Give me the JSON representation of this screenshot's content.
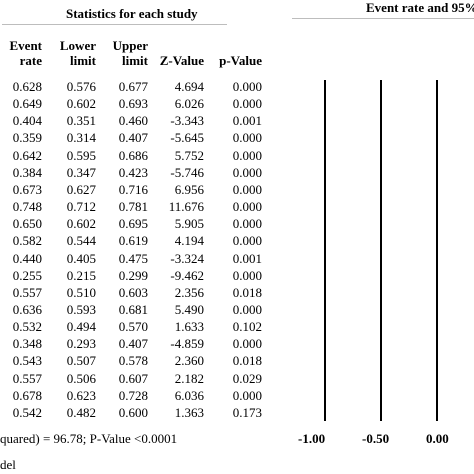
{
  "header": {
    "stats_title": "Statistics for each study",
    "ci_title": "Event rate and 95%"
  },
  "columns": {
    "event_rate": [
      "Event",
      "rate"
    ],
    "lower_limit": [
      "Lower",
      "limit"
    ],
    "upper_limit": [
      "Upper",
      "limit"
    ],
    "z_value": "Z-Value",
    "p_value": "p-Value"
  },
  "rows": [
    [
      "0.628",
      "0.576",
      "0.677",
      "4.694",
      "0.000"
    ],
    [
      "0.649",
      "0.602",
      "0.693",
      "6.026",
      "0.000"
    ],
    [
      "0.404",
      "0.351",
      "0.460",
      "-3.343",
      "0.001"
    ],
    [
      "0.359",
      "0.314",
      "0.407",
      "-5.645",
      "0.000"
    ],
    [
      "0.642",
      "0.595",
      "0.686",
      "5.752",
      "0.000"
    ],
    [
      "0.384",
      "0.347",
      "0.423",
      "-5.746",
      "0.000"
    ],
    [
      "0.673",
      "0.627",
      "0.716",
      "6.956",
      "0.000"
    ],
    [
      "0.748",
      "0.712",
      "0.781",
      "11.676",
      "0.000"
    ],
    [
      "0.650",
      "0.602",
      "0.695",
      "5.905",
      "0.000"
    ],
    [
      "0.582",
      "0.544",
      "0.619",
      "4.194",
      "0.000"
    ],
    [
      "0.440",
      "0.405",
      "0.475",
      "-3.324",
      "0.001"
    ],
    [
      "0.255",
      "0.215",
      "0.299",
      "-9.462",
      "0.000"
    ],
    [
      "0.557",
      "0.510",
      "0.603",
      "2.356",
      "0.018"
    ],
    [
      "0.636",
      "0.593",
      "0.681",
      "5.490",
      "0.000"
    ],
    [
      "0.532",
      "0.494",
      "0.570",
      "1.633",
      "0.102"
    ],
    [
      "0.348",
      "0.293",
      "0.407",
      "-4.859",
      "0.000"
    ],
    [
      "0.543",
      "0.507",
      "0.578",
      "2.360",
      "0.018"
    ],
    [
      "0.557",
      "0.506",
      "0.607",
      "2.182",
      "0.029"
    ],
    [
      "0.678",
      "0.623",
      "0.728",
      "6.036",
      "0.000"
    ],
    [
      "0.542",
      "0.482",
      "0.600",
      "1.363",
      "0.173"
    ]
  ],
  "footer": {
    "heterogeneity": "quared) = 96.78; P-Value <0.0001",
    "model": "del"
  },
  "axis": {
    "ticks": [
      "-1.00",
      "-0.50",
      "0.00"
    ]
  }
}
